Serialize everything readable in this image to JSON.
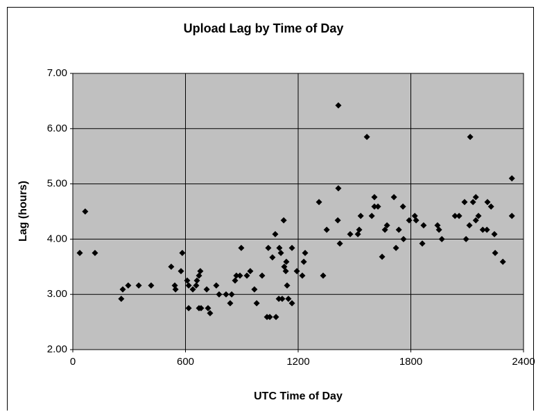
{
  "chart_data": {
    "type": "scatter",
    "title": "Upload Lag by Time of Day",
    "x_label": "UTC Time of Day",
    "y_label": "Lag (hours)",
    "xlim": [
      0,
      2400
    ],
    "xticks": [
      0,
      600,
      1200,
      1800,
      2400
    ],
    "ylim": [
      2,
      7
    ],
    "yticks": [
      {
        "value": 2,
        "label": "2.00"
      },
      {
        "value": 3,
        "label": "3.00"
      },
      {
        "value": 4,
        "label": "4.00"
      },
      {
        "value": 5,
        "label": "5.00"
      },
      {
        "value": 6,
        "label": "6.00"
      },
      {
        "value": 7,
        "label": "7.00"
      }
    ],
    "grid": true,
    "plot_background": "#c0c0c0",
    "marker": "diamond",
    "series": [
      {
        "color": "#000000",
        "x": [
          37,
          66,
          118,
          258,
          266,
          295,
          351,
          417,
          524,
          543,
          547,
          576,
          583,
          609,
          617,
          617,
          639,
          657,
          661,
          672,
          679,
          672,
          683,
          713,
          720,
          731,
          764,
          779,
          816,
          838,
          846,
          864,
          871,
          890,
          897,
          927,
          945,
          967,
          979,
          1008,
          1034,
          1041,
          1049,
          1063,
          1078,
          1082,
          1097,
          1100,
          1108,
          1115,
          1123,
          1126,
          1134,
          1137,
          1141,
          1148,
          1167,
          1167,
          1193,
          1222,
          1230,
          1237,
          1311,
          1333,
          1352,
          1414,
          1414,
          1411,
          1422,
          1477,
          1518,
          1525,
          1533,
          1566,
          1592,
          1606,
          1606,
          1625,
          1647,
          1662,
          1673,
          1710,
          1721,
          1736,
          1758,
          1761,
          1791,
          1821,
          1828,
          1861,
          1868,
          1942,
          1950,
          1965,
          2035,
          2057,
          2086,
          2094,
          2112,
          2116,
          2131,
          2146,
          2146,
          2160,
          2183,
          2205,
          2208,
          2227,
          2245,
          2249,
          2290,
          2338,
          2338
        ],
        "values": [
          3.75,
          4.5,
          3.75,
          2.92,
          3.09,
          3.16,
          3.16,
          3.16,
          3.5,
          3.16,
          3.09,
          3.42,
          3.75,
          3.25,
          3.16,
          2.75,
          3.09,
          3.16,
          3.25,
          3.34,
          3.42,
          2.75,
          2.75,
          3.09,
          2.75,
          2.66,
          3.16,
          3.0,
          3.0,
          2.84,
          3.0,
          3.25,
          3.34,
          3.34,
          3.84,
          3.34,
          3.42,
          3.09,
          2.84,
          3.34,
          2.59,
          3.84,
          2.59,
          3.67,
          4.09,
          2.59,
          2.92,
          3.84,
          3.75,
          2.92,
          4.34,
          3.5,
          3.42,
          3.59,
          3.16,
          2.92,
          2.84,
          3.84,
          3.42,
          3.34,
          3.59,
          3.75,
          4.67,
          3.34,
          4.17,
          6.42,
          4.92,
          4.34,
          3.92,
          4.09,
          4.09,
          4.17,
          4.42,
          5.85,
          4.42,
          4.59,
          4.76,
          4.59,
          3.68,
          4.17,
          4.25,
          4.76,
          3.84,
          4.17,
          4.59,
          4.0,
          4.34,
          4.42,
          4.34,
          3.92,
          4.25,
          4.25,
          4.17,
          4.0,
          4.42,
          4.42,
          4.67,
          4.0,
          4.25,
          5.85,
          4.67,
          4.76,
          4.34,
          4.42,
          4.17,
          4.17,
          4.67,
          4.59,
          4.09,
          3.75,
          3.59,
          5.1,
          4.42
        ]
      }
    ]
  }
}
